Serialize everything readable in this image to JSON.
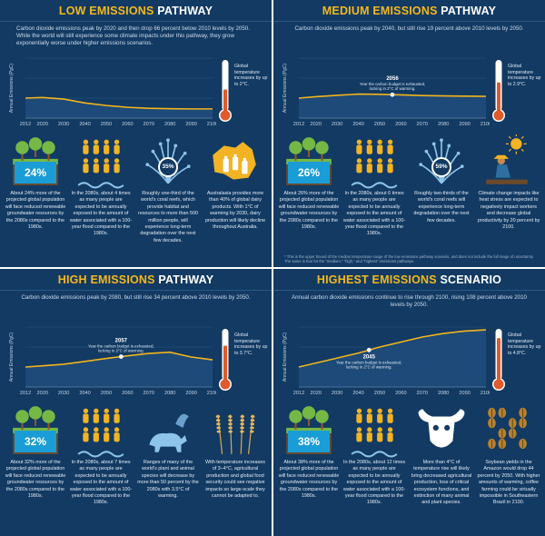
{
  "colors": {
    "panel_bg": "#123a63",
    "title_accent": "#f5b81a",
    "curve": "#f4b41a",
    "pct_box": "#1a9dd6",
    "thermometer": "#e05a2a"
  },
  "panels": [
    {
      "title_main": "LOW EMISSIONS ",
      "title_accent": "PATHWAY",
      "summary": "Carbon dioxide emissions peak by 2020 and then drop 66 percent below 2010 levels by 2050. While the world will still experience some climate impacts under this pathway, they grow exponentially worse under higher emissions scenarios.",
      "chart_data": {
        "type": "area",
        "ylabel": "Annual Emissions (PgC)",
        "x": [
          2012,
          2020,
          2030,
          2040,
          2050,
          2060,
          2070,
          2080,
          2090,
          2100
        ],
        "y": [
          10,
          10.3,
          9.5,
          7.6,
          6.3,
          5.4,
          4.9,
          4.7,
          4.6,
          4.6
        ],
        "ylim": [
          0,
          30
        ]
      },
      "thermo_text": "Global temperature increases by up to 2°C.",
      "thermo_level": 0.45,
      "facts": [
        {
          "icon": "tree-icon",
          "pct": "24%",
          "text": "About 24% more of the projected global population will face reduced renewable groundwater resources by the 2080s compared to the 1980s."
        },
        {
          "icon": "people-icon",
          "pct": "",
          "text": "In the 2080s, about 4 times as many people are expected to be annually exposed to the amount of water associated with a 100-year flood compared to the 1980s."
        },
        {
          "icon": "coral-icon",
          "pct": "35%",
          "text": "Roughly one-third of the world's coral reefs, which provide habitat and resources to more than 500 million people, will experience long-term degradation over the next few decades."
        },
        {
          "icon": "australia-milk-icon",
          "pct": "",
          "text": "Australasia provides more than 40% of global dairy products. With 1°C of warming by 2030, dairy production will likely decline throughout Australia."
        }
      ]
    },
    {
      "title_main": "MEDIUM EMISSIONS ",
      "title_accent": "PATHWAY",
      "summary": "Carbon dioxide emissions peak by 2040, but still rise 19 percent above 2010 levels by 2050.",
      "chart_data": {
        "type": "area",
        "ylabel": "Annual Emissions (PgC)",
        "x": [
          2012,
          2020,
          2030,
          2040,
          2050,
          2060,
          2070,
          2080,
          2090,
          2100
        ],
        "y": [
          10,
          10.7,
          11.4,
          12,
          11.9,
          11.6,
          11.3,
          11.1,
          11,
          10.9
        ],
        "ylim": [
          0,
          30
        ],
        "marker": {
          "x": 2056,
          "label": "2056",
          "note": "Year the carbon budget is exhausted, locking in 2°C of warming."
        }
      },
      "thermo_text": "Global temperature increases by up to 2.9°C.",
      "thermo_level": 0.6,
      "facts": [
        {
          "icon": "tree-icon",
          "pct": "26%",
          "text": "About 26% more of the projected global population will face reduced renewable groundwater resources by the 2080s compared to the 1980s."
        },
        {
          "icon": "people-icon",
          "pct": "",
          "text": "In the 2080s, about 6 times as many people are expected to be annually exposed to the amount of water associated with a 100-year flood compared to the 1980s."
        },
        {
          "icon": "coral-icon",
          "pct": "59%",
          "text": "Roughly two-thirds of the world's coral reefs will experience long-term degradation over the next few decades."
        },
        {
          "icon": "farmer-icon",
          "pct": "",
          "text": "Climate change impacts like heat stress are expected to negatively impact workers and decrease global productivity by 20 percent by 2100."
        }
      ],
      "footnote": "* This is the upper bound of the median temperature range of the low emissions pathway scenario, and does not include the full range of uncertainty. The same is true for the \"medium,\" \"high,\" and \"highest\" emissions pathways."
    },
    {
      "title_main": "HIGH EMISSIONS ",
      "title_accent": "PATHWAY",
      "summary": "Carbon dioxide emissions peak by 2080, but still rise 34 percent above 2010 levels by 2050.",
      "chart_data": {
        "type": "area",
        "ylabel": "Annual Emissions (PgC)",
        "x": [
          2012,
          2020,
          2030,
          2040,
          2050,
          2060,
          2070,
          2080,
          2090,
          2100
        ],
        "y": [
          10,
          10.6,
          11.4,
          12.8,
          14.3,
          15.6,
          16.8,
          17.4,
          15,
          13.6
        ],
        "ylim": [
          0,
          30
        ],
        "marker": {
          "x": 2057,
          "label": "2057",
          "note": "Year the carbon budget is exhausted, locking in 2°C of warming."
        }
      },
      "thermo_text": "Global temperature increases by up to 3.7°C.",
      "thermo_level": 0.72,
      "facts": [
        {
          "icon": "tree-icon",
          "pct": "32%",
          "text": "About 32% more of the projected global population will face reduced renewable groundwater resources by the 2080s compared to the 1980s."
        },
        {
          "icon": "people-icon",
          "pct": "",
          "text": "In the 2080s, about 7 times as many people are expected to be annually exposed to the amount of water associated with a 100-year flood compared to the 1980s."
        },
        {
          "icon": "animals-icon",
          "pct": "",
          "text": "Ranges of many of the world's plant and animal species will decrease by more than 50 percent by the 2080s with 3.5°C of warming."
        },
        {
          "icon": "wheat-icon",
          "pct": "",
          "text": "With temperature increases of 3–4°C, agricultural production and global food security could see negative impacts so large-scale they cannot be adapted to."
        }
      ]
    },
    {
      "title_main": "HIGHEST EMISSIONS ",
      "title_accent": "SCENARIO",
      "summary": "Annual carbon dioxide emissions continue to rise through 2100, rising 108 percent above 2010 levels by 2050.",
      "chart_data": {
        "type": "area",
        "ylabel": "Annual Emissions (PgC)",
        "x": [
          2012,
          2020,
          2030,
          2040,
          2050,
          2060,
          2070,
          2080,
          2090,
          2100
        ],
        "y": [
          10,
          12,
          14.5,
          17,
          20,
          22.5,
          25,
          26.8,
          28,
          28.6
        ],
        "ylim": [
          0,
          30
        ],
        "marker": {
          "x": 2045,
          "label": "2045",
          "note": "Year the carbon budget is exhausted, locking in 2°C of warming."
        }
      },
      "thermo_text": "Global temperature increases by up to 4.8°C.",
      "thermo_level": 0.88,
      "facts": [
        {
          "icon": "tree-icon",
          "pct": "38%",
          "text": "About 38% more of the projected global population will face reduced renewable groundwater resources by the 2080s compared to the 1980s."
        },
        {
          "icon": "people-icon",
          "pct": "",
          "text": "In the 2080s, about 12 times as many people are expected to be annually exposed to the amount of water associated with a 100-year flood compared to the 1980s."
        },
        {
          "icon": "skull-icon",
          "pct": "",
          "text": "More than 4°C of temperature rise will likely bring decreased agricultural production, loss of critical ecosystem functions, and extinction of many animal and plant species."
        },
        {
          "icon": "coffee-icon",
          "pct": "",
          "text": "Soybean yields in the Amazon would drop 44 percent by 2050. With higher amounts of warming, coffee farming could be virtually impossible in Southeastern Brazil in 2100."
        }
      ]
    }
  ]
}
